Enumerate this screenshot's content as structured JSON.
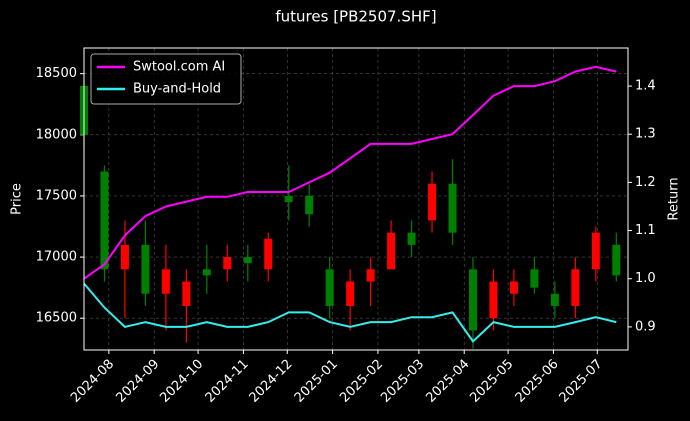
{
  "chart_data": {
    "type": "candlestick",
    "title": "futures [PB2507.SHF]",
    "ylabel": "Price",
    "y2label": "Return",
    "x": [
      "2024-07-15",
      "2024-07-29",
      "2024-08-12",
      "2024-08-26",
      "2024-09-09",
      "2024-09-23",
      "2024-10-07",
      "2024-10-21",
      "2024-11-04",
      "2024-11-18",
      "2024-12-02",
      "2024-12-16",
      "2024-12-30",
      "2025-01-13",
      "2025-01-27",
      "2025-02-10",
      "2025-02-24",
      "2025-03-10",
      "2025-03-24",
      "2025-04-07",
      "2025-04-21",
      "2025-05-05",
      "2025-05-19",
      "2025-06-02",
      "2025-06-16",
      "2025-06-30",
      "2025-07-14"
    ],
    "open": [
      18400,
      17700,
      16900,
      17100,
      16700,
      16600,
      16900,
      16900,
      17000,
      16900,
      17500,
      17500,
      16900,
      16600,
      16800,
      16900,
      17200,
      17300,
      17600,
      16900,
      16500,
      16700,
      16900,
      16700,
      16600,
      16900,
      17100
    ],
    "high": [
      18450,
      17750,
      17300,
      17300,
      17100,
      16900,
      17100,
      17100,
      17100,
      17200,
      17750,
      17600,
      17000,
      16900,
      17000,
      17300,
      17300,
      17700,
      17800,
      17000,
      16900,
      16900,
      17000,
      16800,
      17000,
      17250,
      17200
    ],
    "low": [
      17900,
      16800,
      16500,
      16600,
      16400,
      16300,
      16700,
      16800,
      16800,
      16800,
      17300,
      17250,
      16500,
      16400,
      16600,
      16900,
      17000,
      17200,
      17100,
      16250,
      16400,
      16600,
      16700,
      16500,
      16500,
      16800,
      16800
    ],
    "close": [
      18000,
      16900,
      17100,
      16700,
      16900,
      16800,
      16850,
      17000,
      16950,
      17150,
      17450,
      17350,
      16600,
      16800,
      16900,
      17200,
      17100,
      17600,
      17200,
      16400,
      16800,
      16800,
      16750,
      16600,
      16900,
      17200,
      16850
    ],
    "up_color": "#ff0000",
    "down_color": "#008000",
    "series": [
      {
        "name": "Swtool.com AI",
        "color": "#ff00ff",
        "axis": "y2",
        "values": [
          1.0,
          1.03,
          1.09,
          1.13,
          1.15,
          1.16,
          1.17,
          1.17,
          1.18,
          1.18,
          1.18,
          1.2,
          1.22,
          1.25,
          1.28,
          1.28,
          1.28,
          1.29,
          1.3,
          1.34,
          1.38,
          1.4,
          1.4,
          1.41,
          1.43,
          1.44,
          1.43
        ]
      },
      {
        "name": "Buy-and-Hold",
        "color": "#33eeee",
        "axis": "y2",
        "values": [
          0.99,
          0.94,
          0.9,
          0.91,
          0.9,
          0.9,
          0.91,
          0.9,
          0.9,
          0.91,
          0.93,
          0.93,
          0.91,
          0.9,
          0.91,
          0.91,
          0.92,
          0.92,
          0.93,
          0.87,
          0.91,
          0.9,
          0.9,
          0.9,
          0.91,
          0.92,
          0.91
        ]
      }
    ],
    "xlim": [
      "2024-07-15",
      "2025-07-22"
    ],
    "xticks": [
      {
        "value": "2024-08-01",
        "label": "2024-08"
      },
      {
        "value": "2024-09-01",
        "label": "2024-09"
      },
      {
        "value": "2024-10-01",
        "label": "2024-10"
      },
      {
        "value": "2024-11-01",
        "label": "2024-11"
      },
      {
        "value": "2024-12-01",
        "label": "2024-12"
      },
      {
        "value": "2025-01-01",
        "label": "2025-01"
      },
      {
        "value": "2025-02-01",
        "label": "2025-02"
      },
      {
        "value": "2025-03-01",
        "label": "2025-03"
      },
      {
        "value": "2025-04-01",
        "label": "2025-04"
      },
      {
        "value": "2025-05-01",
        "label": "2025-05"
      },
      {
        "value": "2025-06-01",
        "label": "2025-06"
      },
      {
        "value": "2025-07-01",
        "label": "2025-07"
      }
    ],
    "ylim": [
      16240,
      18710
    ],
    "yticks": [
      16500,
      17000,
      17500,
      18000,
      18500
    ],
    "y2lim": [
      0.852,
      1.479
    ],
    "y2ticks": [
      0.9,
      {
        "value": 1.0,
        "label": "1.0"
      },
      1.1,
      1.2,
      1.3,
      1.4
    ],
    "grid": true,
    "legend": "upper left"
  }
}
